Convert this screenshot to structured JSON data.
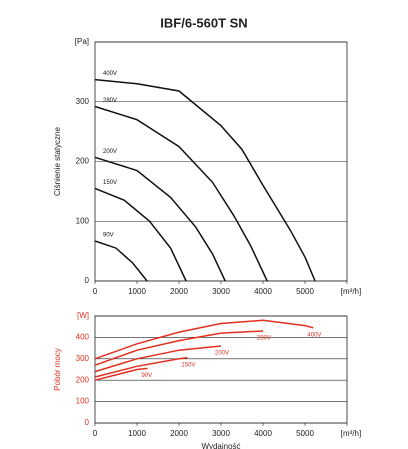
{
  "chart_data": [
    {
      "type": "line",
      "title": "IBF/6-560T SN",
      "ylabel": "Ciśnienie statyczne",
      "axis_color": "#222222",
      "grid": true,
      "xlim": [
        0,
        6000
      ],
      "xticks": [
        0,
        1000,
        2000,
        3000,
        4000,
        5000,
        {
          "value": 6000,
          "label": "[m³/h]"
        }
      ],
      "ylim": [
        0,
        400
      ],
      "yticks": [
        0,
        100,
        200,
        300,
        {
          "value": 400,
          "label": "[Pa]"
        }
      ],
      "series": [
        {
          "name": "400V",
          "color": "#111111",
          "x": [
            0,
            1000,
            2000,
            3000,
            3500,
            4000,
            4650,
            5000,
            5240
          ],
          "values": [
            337,
            330,
            318,
            260,
            220,
            160,
            85,
            40,
            0
          ]
        },
        {
          "name": "280V",
          "color": "#111111",
          "x": [
            0,
            1000,
            2000,
            2800,
            3300,
            3700,
            4100
          ],
          "values": [
            292,
            270,
            225,
            165,
            110,
            60,
            0
          ]
        },
        {
          "name": "200V",
          "color": "#111111",
          "x": [
            0,
            1000,
            1800,
            2400,
            2800,
            3100
          ],
          "values": [
            207,
            185,
            140,
            90,
            45,
            0
          ]
        },
        {
          "name": "150V",
          "color": "#111111",
          "x": [
            0,
            700,
            1300,
            1800,
            2170
          ],
          "values": [
            155,
            135,
            100,
            55,
            0
          ]
        },
        {
          "name": "90V",
          "color": "#111111",
          "x": [
            0,
            500,
            900,
            1240
          ],
          "values": [
            67,
            55,
            30,
            0
          ]
        }
      ]
    },
    {
      "type": "line",
      "xlabel": "Wydajność",
      "ylabel": "Pobór mocy",
      "axis_color": "#e03020",
      "grid": true,
      "xlim": [
        0,
        6000
      ],
      "xticks": [
        0,
        1000,
        2000,
        3000,
        4000,
        5000,
        {
          "value": 6000,
          "label": "[m³/h]"
        }
      ],
      "ylim": [
        0,
        500
      ],
      "yticks": [
        0,
        100,
        200,
        300,
        400,
        {
          "value": 500,
          "label": "[W]"
        }
      ],
      "series": [
        {
          "name": "400V",
          "color": "#e03020",
          "x": [
            0,
            1000,
            2000,
            3000,
            4000,
            5000,
            5200
          ],
          "values": [
            300,
            370,
            425,
            465,
            480,
            455,
            445
          ]
        },
        {
          "name": "280V",
          "color": "#e03020",
          "x": [
            0,
            1000,
            2000,
            3000,
            4000
          ],
          "values": [
            270,
            340,
            385,
            420,
            430
          ]
        },
        {
          "name": "200V",
          "color": "#e03020",
          "x": [
            0,
            1000,
            2000,
            3000
          ],
          "values": [
            240,
            300,
            340,
            360
          ]
        },
        {
          "name": "150V",
          "color": "#e03020",
          "x": [
            0,
            1000,
            2000,
            2200
          ],
          "values": [
            215,
            265,
            300,
            305
          ]
        },
        {
          "name": "90V",
          "color": "#e03020",
          "x": [
            0,
            1000,
            1250
          ],
          "values": [
            200,
            250,
            255
          ]
        }
      ]
    }
  ]
}
